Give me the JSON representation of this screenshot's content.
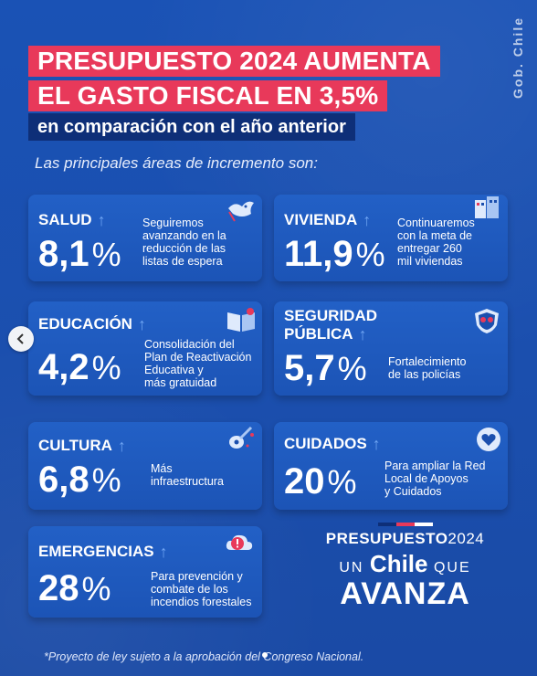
{
  "title": {
    "line1": "PRESUPUESTO 2024 AUMENTA",
    "line2": "EL GASTO FISCAL EN 3,5%",
    "subtitle": "en comparación con el año anterior"
  },
  "intro": "Las principales áreas de incremento son:",
  "side_brand": "Gob. Chile",
  "cards": [
    {
      "label": "SALUD",
      "value": "8,1",
      "desc": [
        "Seguiremos",
        "avanzando en la",
        "reducción de las",
        "listas de espera"
      ],
      "icon": "bird-icon"
    },
    {
      "label": "VIVIENDA",
      "value": "11,9",
      "desc": [
        "Continuaremos",
        "con la meta de",
        "entregar 260",
        "mil viviendas"
      ],
      "icon": "buildings-icon"
    },
    {
      "label": "EDUCACIÓN",
      "value": "4,2",
      "desc": [
        "Consolidación del",
        "Plan de Reactivación",
        "Educativa y",
        "más gratuidad"
      ],
      "icon": "book-icon"
    },
    {
      "label": "SEGURIDAD PÚBLICA",
      "label_line1": "SEGURIDAD",
      "label_line2": "PÚBLICA",
      "value": "5,7",
      "desc": [
        "Fortalecimiento",
        "de las policías"
      ],
      "icon": "police-badge-icon"
    },
    {
      "label": "CULTURA",
      "value": "6,8",
      "desc": [
        "Más",
        "infraestructura"
      ],
      "icon": "guitar-icon"
    },
    {
      "label": "CUIDADOS",
      "value": "20",
      "desc": [
        "Para ampliar la Red",
        "Local de Apoyos",
        "y Cuidados"
      ],
      "icon": "care-heart-icon"
    },
    {
      "label": "EMERGENCIAS",
      "value": "28",
      "desc": [
        "Para prevención y",
        "combate de los",
        "incendios forestales"
      ],
      "icon": "alert-cloud-icon"
    }
  ],
  "percent_sign": "%",
  "arrow_glyph": "↑",
  "brand": {
    "top": "PRESUPUESTO",
    "year": "2024",
    "un": "UN",
    "chile": "Chile",
    "que": "QUE",
    "avanza": "AVANZA"
  },
  "footnote": "*Proyecto de ley sujeto a la aprobación del Congreso Nacional.",
  "colors": {
    "background": "#1b4fae",
    "title_bg": "#e8395a",
    "subtitle_bg": "#0e2f78",
    "arrow": "#6ea4f2",
    "brand_red": "#e8395a",
    "brand_blue": "#0e2f78"
  }
}
